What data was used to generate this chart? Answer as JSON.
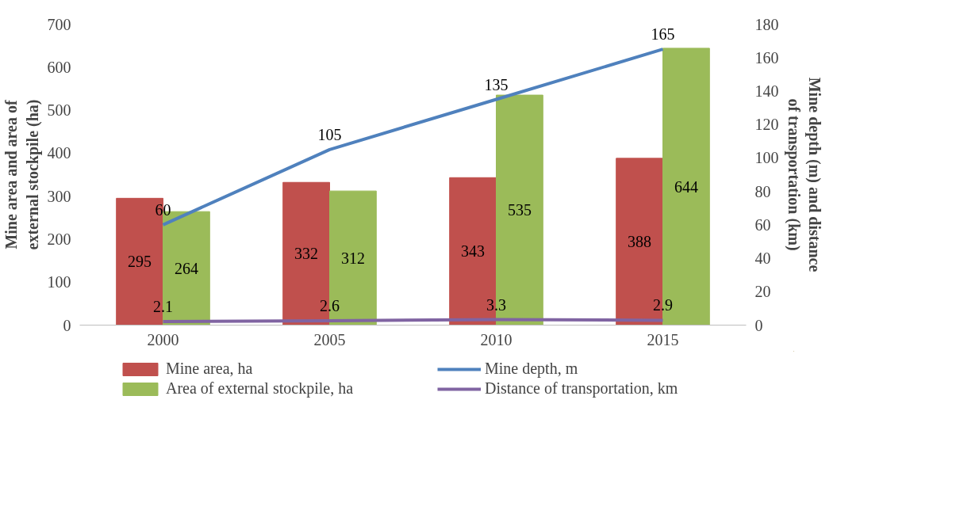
{
  "chart_data": {
    "type": "bar",
    "ylabel": "Mine area and area of external stockpile (ha)",
    "y2label": "Mine depth (m) and distance of transportation (km)",
    "categories": [
      "2000",
      "2005",
      "2010",
      "2015"
    ],
    "series": [
      {
        "name": "Mine area, ha",
        "type": "bar",
        "color": "#c0504d",
        "values": [
          295,
          332,
          343,
          388
        ]
      },
      {
        "name": "Area of external stockpile, ha",
        "type": "bar",
        "color": "#9bbb59",
        "values": [
          264,
          312,
          535,
          644
        ]
      },
      {
        "name": "Mine depth, m",
        "type": "line",
        "axis": "y2",
        "color": "#4f81bd",
        "values": [
          60,
          105,
          135,
          165
        ]
      },
      {
        "name": "Distance of transportation, km",
        "type": "line",
        "axis": "y2",
        "color": "#8064a2",
        "values": [
          2.1,
          2.6,
          3.3,
          2.9
        ]
      }
    ],
    "ylim": [
      0,
      700
    ],
    "yticks": [
      0,
      100,
      200,
      300,
      400,
      500,
      600,
      700
    ],
    "y2lim": [
      0,
      180
    ],
    "y2ticks": [
      0,
      20,
      40,
      60,
      80,
      100,
      120,
      140,
      160,
      180
    ],
    "data_labels": true,
    "grid": false,
    "legend": "bottom",
    "marker": "none",
    "line_style": "solid"
  }
}
